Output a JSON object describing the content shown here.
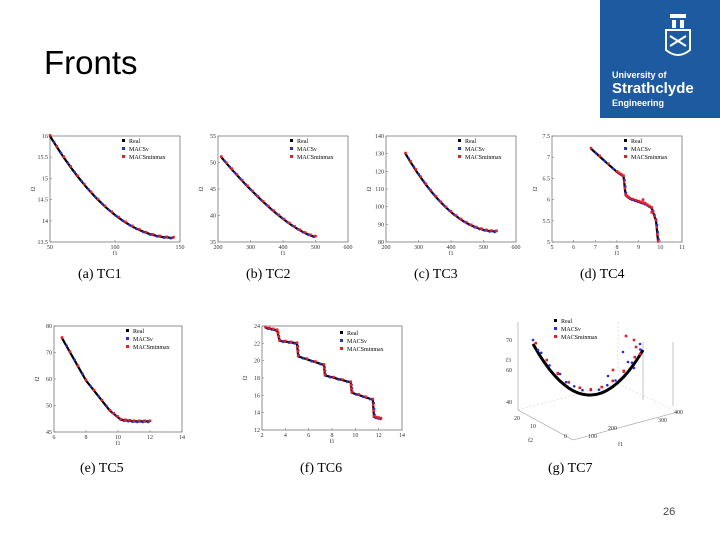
{
  "slide": {
    "title": "Fronts",
    "page_number": "26"
  },
  "logo": {
    "line1": "University of",
    "line2": "Strathclyde",
    "line3": "Engineering"
  },
  "colors": {
    "brand": "#1e5aa0",
    "real": "#000000",
    "macsv": "#2b2bd6",
    "macsminmax": "#e0202a"
  },
  "legend": {
    "real": "Real",
    "macsv": "MACSν",
    "macsminmax": "MACSminmax"
  },
  "chart_data": [
    {
      "id": "tc1",
      "caption": "(a)  TC1",
      "type": "scatter",
      "xlabel": "f1",
      "ylabel": "f2",
      "xlim": [
        50,
        150
      ],
      "ylim": [
        13.5,
        16
      ],
      "xticks": [
        "50",
        "100",
        "150"
      ],
      "yticks": [
        "13.5",
        "14",
        "14.5",
        "15",
        "15.5",
        "16"
      ],
      "curve": {
        "kind": "power",
        "x0": 50,
        "x1": 145,
        "y0": 16.0,
        "y1": 13.6,
        "k": 2.0
      }
    },
    {
      "id": "tc2",
      "caption": "(b)  TC2",
      "type": "scatter",
      "xlabel": "f1",
      "ylabel": "f2",
      "xlim": [
        200,
        600
      ],
      "ylim": [
        35,
        55
      ],
      "xticks": [
        "200",
        "300",
        "400",
        "500",
        "600"
      ],
      "yticks": [
        "35",
        "40",
        "45",
        "50",
        "55"
      ],
      "curve": {
        "kind": "power",
        "x0": 210,
        "x1": 500,
        "y0": 51.0,
        "y1": 36.0,
        "k": 1.4
      }
    },
    {
      "id": "tc3",
      "caption": "(c)  TC3",
      "type": "scatter",
      "xlabel": "f1",
      "ylabel": "f2",
      "xlim": [
        200,
        600
      ],
      "ylim": [
        80,
        140
      ],
      "xticks": [
        "200",
        "300",
        "400",
        "500",
        "600"
      ],
      "yticks": [
        "80",
        "90",
        "100",
        "110",
        "120",
        "130",
        "140"
      ],
      "curve": {
        "kind": "power",
        "x0": 260,
        "x1": 540,
        "y0": 130.0,
        "y1": 86.0,
        "k": 2.0
      }
    },
    {
      "id": "tc4",
      "caption": "(d)  TC4",
      "type": "scatter",
      "xlabel": "f1",
      "ylabel": "f2",
      "xlim": [
        5,
        11
      ],
      "ylim": [
        5,
        7.5
      ],
      "xticks": [
        "5",
        "6",
        "7",
        "8",
        "9",
        "10",
        "11"
      ],
      "yticks": [
        "5",
        "5.5",
        "6",
        "6.5",
        "7",
        "7.5"
      ],
      "curve": {
        "kind": "poly",
        "points": [
          [
            6.8,
            7.2
          ],
          [
            8.0,
            6.65
          ],
          [
            8.3,
            6.55
          ],
          [
            8.4,
            6.1
          ],
          [
            8.6,
            6.02
          ],
          [
            9.0,
            5.95
          ],
          [
            9.3,
            5.9
          ],
          [
            9.6,
            5.8
          ],
          [
            9.8,
            5.5
          ],
          [
            9.9,
            5.0
          ]
        ]
      },
      "outliers": [
        [
          9.2,
          6.0
        ],
        [
          9.6,
          5.7
        ]
      ]
    },
    {
      "id": "tc5",
      "caption": "(e)  TC5",
      "type": "scatter",
      "xlabel": "f1",
      "ylabel": "f2",
      "xlim": [
        6,
        14
      ],
      "ylim": [
        45,
        80
      ],
      "xticks": [
        "6",
        "8",
        "10",
        "12",
        "14"
      ],
      "yticks": [
        "45",
        "50",
        "60",
        "70",
        "80"
      ],
      "curve": {
        "kind": "poly",
        "points": [
          [
            6.5,
            76
          ],
          [
            8.0,
            62
          ],
          [
            9.5,
            52
          ],
          [
            10.2,
            49
          ],
          [
            11.0,
            48.5
          ],
          [
            12.0,
            48.5
          ]
        ]
      }
    },
    {
      "id": "tc6",
      "caption": "(f)  TC6",
      "type": "scatter",
      "xlabel": "f1",
      "ylabel": "f2",
      "xlim": [
        2,
        14
      ],
      "ylim": [
        12,
        24
      ],
      "xticks": [
        "2",
        "4",
        "6",
        "8",
        "10",
        "12",
        "14"
      ],
      "yticks": [
        "12",
        "14",
        "16",
        "18",
        "20",
        "22",
        "24"
      ],
      "curve": {
        "kind": "poly",
        "points": [
          [
            2.3,
            23.8
          ],
          [
            3.3,
            23.5
          ],
          [
            3.5,
            22.3
          ],
          [
            5.0,
            22.0
          ],
          [
            5.1,
            20.5
          ],
          [
            7.3,
            19.5
          ],
          [
            7.4,
            18.3
          ],
          [
            9.6,
            17.5
          ],
          [
            9.7,
            16.3
          ],
          [
            11.5,
            15.5
          ],
          [
            11.6,
            13.5
          ],
          [
            12.2,
            13.3
          ]
        ]
      }
    },
    {
      "id": "tc7",
      "caption": "(g)  TC7",
      "type": "scatter",
      "xlabel": "f1",
      "ylabel": "f2",
      "zlabel": "f3",
      "xticks": [
        "100",
        "200"
      ],
      "yticks": [
        "0",
        "10",
        "20"
      ],
      "zticks": [
        "300",
        "400"
      ],
      "vticks": [
        "40",
        "60",
        "70"
      ],
      "curve": {
        "kind": "bowl"
      }
    }
  ]
}
